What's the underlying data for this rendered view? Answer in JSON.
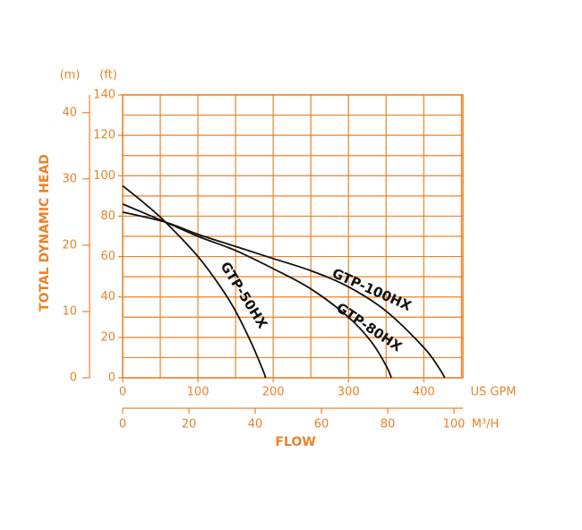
{
  "chart_data": {
    "type": "line",
    "y_label": "TOTAL DYNAMIC HEAD",
    "x_label": "FLOW",
    "y_unit": "(ft)",
    "y2_unit": "(m)",
    "x_unit": "US GPM",
    "x2_unit": "M³/H",
    "xlim": [
      0,
      452
    ],
    "xticks": [
      0,
      100,
      200,
      300,
      400
    ],
    "x_minor_ticks": [
      50,
      150,
      250,
      350,
      450
    ],
    "x2lim": [
      0,
      102.7
    ],
    "x2ticks": [
      0,
      20,
      40,
      60,
      80,
      100
    ],
    "ylim": [
      0,
      140
    ],
    "yticks": [
      0,
      20,
      40,
      60,
      80,
      100,
      120,
      140
    ],
    "y_minor_ticks": [
      10,
      30,
      50,
      70,
      90,
      110,
      130
    ],
    "y2lim": [
      0,
      42.67
    ],
    "y2ticks": [
      0,
      10,
      20,
      30,
      40
    ],
    "grid": true,
    "axis_color": "#e8832a",
    "series": [
      {
        "name": "GTP-50HX",
        "color": "#111111",
        "x": [
          0,
          30,
          57,
          100,
          130,
          150,
          170,
          185,
          190
        ],
        "values": [
          95,
          86,
          77,
          60,
          45,
          33,
          18,
          5,
          0
        ]
      },
      {
        "name": "GTP-80HX",
        "color": "#111111",
        "x": [
          0,
          57,
          100,
          150,
          200,
          250,
          300,
          330,
          350,
          357
        ],
        "values": [
          86,
          77,
          70,
          63,
          54,
          44,
          30,
          18,
          6,
          0
        ]
      },
      {
        "name": "GTP-100HX",
        "color": "#111111",
        "x": [
          0,
          57,
          100,
          150,
          200,
          250,
          300,
          350,
          400,
          420,
          428
        ],
        "values": [
          82,
          77,
          71,
          65,
          59,
          53,
          45,
          33,
          15,
          5,
          0
        ]
      }
    ]
  }
}
